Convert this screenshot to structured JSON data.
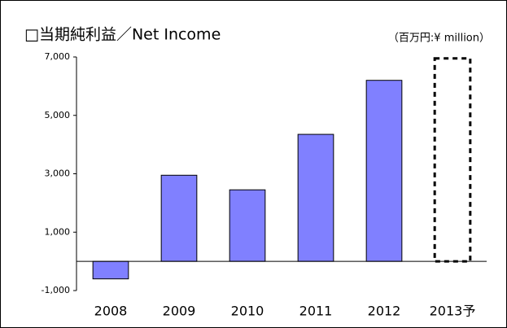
{
  "chart_data": {
    "type": "bar",
    "title": "□当期純利益／Net Income",
    "unit_label": "（百万円:¥ million）",
    "categories": [
      "2008",
      "2009",
      "2010",
      "2011",
      "2012",
      "2013予"
    ],
    "values": [
      -600,
      2950,
      2450,
      4350,
      6200,
      6950
    ],
    "dashed": [
      false,
      false,
      false,
      false,
      false,
      true
    ],
    "color": "#8080ff",
    "ylim": [
      -1000,
      7000
    ],
    "yticks": [
      {
        "value": -1000,
        "label": "-1,000"
      },
      {
        "value": 1000,
        "label": "1,000"
      },
      {
        "value": 3000,
        "label": "3,000"
      },
      {
        "value": 5000,
        "label": "5,000"
      },
      {
        "value": 7000,
        "label": "7,000"
      }
    ],
    "grid": false
  }
}
